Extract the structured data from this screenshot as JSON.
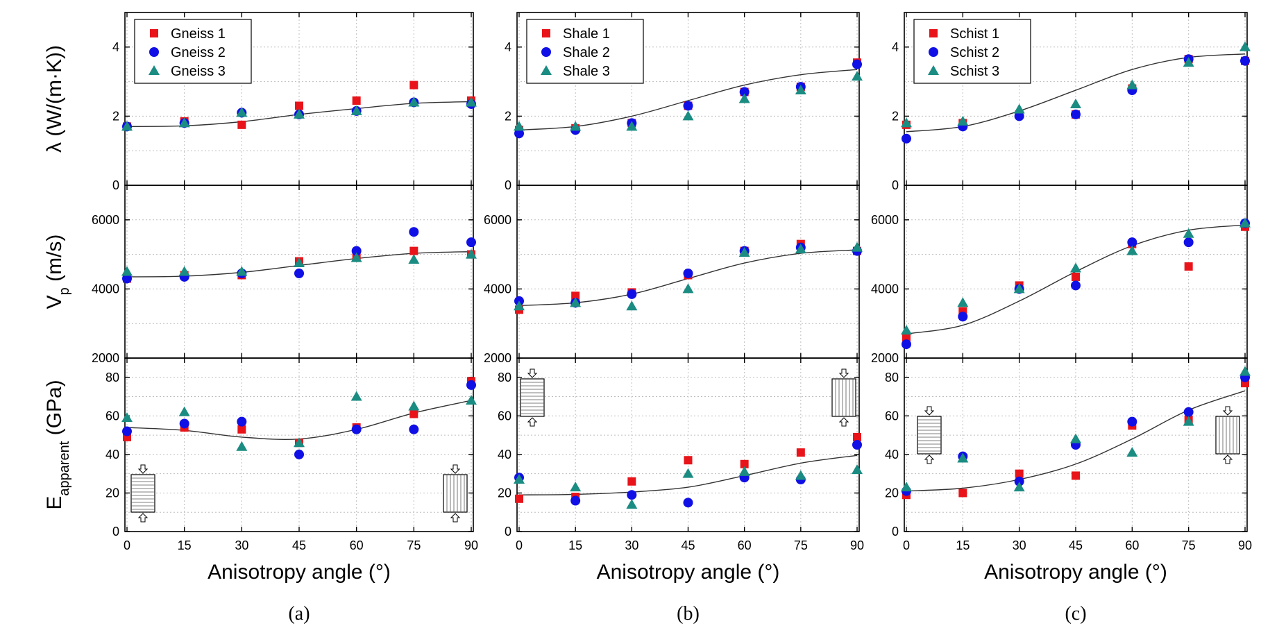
{
  "colors": {
    "s1": "#e8141a",
    "s2": "#1010e6",
    "s3": "#1a8c82",
    "fit": "#333333"
  },
  "chart_data": [
    {
      "type": "scatter",
      "id": "a",
      "caption": "(a)",
      "xlabel": "Anisotropy angle (°)",
      "x": [
        0,
        15,
        30,
        45,
        60,
        75,
        90
      ],
      "xticks": [
        "0",
        "15",
        "30",
        "45",
        "60",
        "75",
        "90"
      ],
      "legend": [
        "Gneiss 1",
        "Gneiss 2",
        "Gneiss 3"
      ],
      "rows": [
        {
          "ylabel": "λ (W/(m·K))",
          "ylim": [
            0,
            5
          ],
          "yticks": [
            0,
            2,
            4
          ],
          "ytick_labels": [
            "0",
            "2",
            "4"
          ],
          "grid": true,
          "series": [
            {
              "name": "Gneiss 1",
              "marker": "square",
              "values": [
                1.7,
                1.85,
                1.75,
                2.3,
                2.45,
                2.9,
                2.45
              ]
            },
            {
              "name": "Gneiss 2",
              "marker": "circle",
              "values": [
                1.7,
                1.8,
                2.1,
                2.05,
                2.15,
                2.4,
                2.35
              ]
            },
            {
              "name": "Gneiss 3",
              "marker": "triangle",
              "values": [
                1.7,
                1.8,
                2.1,
                2.05,
                2.15,
                2.4,
                2.4
              ]
            }
          ],
          "fit": [
            1.7,
            1.72,
            1.84,
            2.05,
            2.22,
            2.37,
            2.42
          ]
        },
        {
          "ylabel": "Vp (m/s)",
          "ylim": [
            2000,
            7000
          ],
          "yticks": [
            2000,
            4000,
            6000
          ],
          "ytick_labels": [
            "2000",
            "4000",
            "6000"
          ],
          "grid": true,
          "series": [
            {
              "name": "Gneiss 1",
              "marker": "square",
              "values": [
                4300,
                4400,
                4400,
                4800,
                4950,
                5100,
                5000
              ]
            },
            {
              "name": "Gneiss 2",
              "marker": "circle",
              "values": [
                4300,
                4350,
                4450,
                4450,
                5100,
                5650,
                5350
              ]
            },
            {
              "name": "Gneiss 3",
              "marker": "triangle",
              "values": [
                4500,
                4500,
                4500,
                4750,
                4900,
                4850,
                5000
              ]
            }
          ],
          "fit": [
            4350,
            4370,
            4480,
            4680,
            4880,
            5030,
            5080
          ]
        },
        {
          "ylabel": "Eapparent (GPa)",
          "ylim": [
            0,
            90
          ],
          "yticks": [
            0,
            20,
            40,
            60,
            80
          ],
          "ytick_labels": [
            "0",
            "20",
            "40",
            "60",
            "80"
          ],
          "grid": true,
          "series": [
            {
              "name": "Gneiss 1",
              "marker": "square",
              "values": [
                49,
                54,
                53,
                46,
                54,
                61,
                78
              ]
            },
            {
              "name": "Gneiss 2",
              "marker": "circle",
              "values": [
                52,
                56,
                57,
                40,
                53,
                53,
                76
              ]
            },
            {
              "name": "Gneiss 3",
              "marker": "triangle",
              "values": [
                59,
                62,
                44,
                46,
                70,
                65,
                68
              ]
            }
          ],
          "fit": [
            54,
            52.5,
            49,
            48,
            53,
            61.5,
            68
          ]
        }
      ],
      "insets": [
        {
          "row": 2,
          "side": "left",
          "lines": "horizontal"
        },
        {
          "row": 2,
          "side": "right",
          "lines": "vertical"
        }
      ]
    },
    {
      "type": "scatter",
      "id": "b",
      "caption": "(b)",
      "xlabel": "Anisotropy angle (°)",
      "x": [
        0,
        15,
        30,
        45,
        60,
        75,
        90
      ],
      "xticks": [
        "0",
        "15",
        "30",
        "45",
        "60",
        "75",
        "90"
      ],
      "legend": [
        "Shale 1",
        "Shale 2",
        "Shale 3"
      ],
      "rows": [
        {
          "ylabel": "",
          "ylim": [
            0,
            5
          ],
          "yticks": [
            0,
            2,
            4
          ],
          "ytick_labels": [
            "0",
            "2",
            "4"
          ],
          "grid": true,
          "series": [
            {
              "name": "Shale 1",
              "marker": "square",
              "values": [
                1.6,
                1.65,
                1.8,
                2.3,
                2.7,
                2.85,
                3.55
              ]
            },
            {
              "name": "Shale 2",
              "marker": "circle",
              "values": [
                1.5,
                1.6,
                1.8,
                2.3,
                2.7,
                2.85,
                3.5
              ]
            },
            {
              "name": "Shale 3",
              "marker": "triangle",
              "values": [
                1.7,
                1.7,
                1.7,
                2.0,
                2.5,
                2.75,
                3.15
              ]
            }
          ],
          "fit": [
            1.6,
            1.7,
            2.0,
            2.45,
            2.9,
            3.2,
            3.35
          ]
        },
        {
          "ylabel": "",
          "ylim": [
            2000,
            7000
          ],
          "yticks": [
            2000,
            4000,
            6000
          ],
          "ytick_labels": [
            "2000",
            "4000",
            "6000"
          ],
          "grid": true,
          "series": [
            {
              "name": "Shale 1",
              "marker": "square",
              "values": [
                3400,
                3800,
                3900,
                4400,
                5100,
                5300,
                5100
              ]
            },
            {
              "name": "Shale 2",
              "marker": "circle",
              "values": [
                3650,
                3600,
                3850,
                4450,
                5100,
                5200,
                5100
              ]
            },
            {
              "name": "Shale 3",
              "marker": "triangle",
              "values": [
                3500,
                3600,
                3500,
                4000,
                5050,
                5150,
                5200
              ]
            }
          ],
          "fit": [
            3520,
            3600,
            3850,
            4300,
            4750,
            5030,
            5130
          ]
        },
        {
          "ylabel": "",
          "ylim": [
            0,
            90
          ],
          "yticks": [
            0,
            20,
            40,
            60,
            80
          ],
          "ytick_labels": [
            "0",
            "20",
            "40",
            "60",
            "80"
          ],
          "grid": true,
          "series": [
            {
              "name": "Shale 1",
              "marker": "square",
              "values": [
                17,
                18,
                26,
                37,
                35,
                41,
                49
              ]
            },
            {
              "name": "Shale 2",
              "marker": "circle",
              "values": [
                28,
                16,
                19,
                15,
                28,
                27,
                45
              ]
            },
            {
              "name": "Shale 3",
              "marker": "triangle",
              "values": [
                27,
                23,
                14,
                30,
                31,
                29,
                32
              ]
            }
          ],
          "fit": [
            19,
            19.3,
            20.5,
            23,
            29,
            35.5,
            39.5
          ]
        }
      ],
      "insets": [
        {
          "row": 2,
          "side": "left",
          "lines": "horizontal"
        },
        {
          "row": 2,
          "side": "right",
          "lines": "vertical"
        }
      ]
    },
    {
      "type": "scatter",
      "id": "c",
      "caption": "(c)",
      "xlabel": "Anisotropy angle (°)",
      "x": [
        0,
        15,
        30,
        45,
        60,
        75,
        90
      ],
      "xticks": [
        "0",
        "15",
        "30",
        "45",
        "60",
        "75",
        "90"
      ],
      "legend": [
        "Schist 1",
        "Schist 2",
        "Schist 3"
      ],
      "rows": [
        {
          "ylabel": "",
          "ylim": [
            0,
            5
          ],
          "yticks": [
            0,
            2,
            4
          ],
          "ytick_labels": [
            "0",
            "2",
            "4"
          ],
          "grid": true,
          "series": [
            {
              "name": "Schist 1",
              "marker": "square",
              "values": [
                1.75,
                1.8,
                2.05,
                2.05,
                2.8,
                3.65,
                3.6
              ]
            },
            {
              "name": "Schist 2",
              "marker": "circle",
              "values": [
                1.35,
                1.7,
                2.0,
                2.05,
                2.75,
                3.65,
                3.6
              ]
            },
            {
              "name": "Schist 3",
              "marker": "triangle",
              "values": [
                1.8,
                1.85,
                2.2,
                2.35,
                2.9,
                3.55,
                4.0
              ]
            }
          ],
          "fit": [
            1.55,
            1.7,
            2.15,
            2.75,
            3.35,
            3.7,
            3.8
          ]
        },
        {
          "ylabel": "",
          "ylim": [
            2000,
            7000
          ],
          "yticks": [
            2000,
            4000,
            6000
          ],
          "ytick_labels": [
            "2000",
            "4000",
            "6000"
          ],
          "grid": true,
          "series": [
            {
              "name": "Schist 1",
              "marker": "square",
              "values": [
                2600,
                3350,
                4100,
                4350,
                5300,
                4650,
                5800
              ]
            },
            {
              "name": "Schist 2",
              "marker": "circle",
              "values": [
                2400,
                3200,
                4000,
                4100,
                5350,
                5350,
                5900
              ]
            },
            {
              "name": "Schist 3",
              "marker": "triangle",
              "values": [
                2800,
                3600,
                4000,
                4600,
                5100,
                5600,
                5900
              ]
            }
          ],
          "fit": [
            2700,
            2950,
            3650,
            4500,
            5250,
            5700,
            5850
          ]
        },
        {
          "ylabel": "",
          "ylim": [
            0,
            90
          ],
          "yticks": [
            0,
            20,
            40,
            60,
            80
          ],
          "ytick_labels": [
            "0",
            "20",
            "40",
            "60",
            "80"
          ],
          "grid": true,
          "series": [
            {
              "name": "Schist 1",
              "marker": "square",
              "values": [
                19,
                20,
                30,
                29,
                55,
                58,
                77
              ]
            },
            {
              "name": "Schist 2",
              "marker": "circle",
              "values": [
                21,
                39,
                26,
                45,
                57,
                62,
                80
              ]
            },
            {
              "name": "Schist 3",
              "marker": "triangle",
              "values": [
                23,
                38,
                23,
                48,
                41,
                57,
                83
              ]
            }
          ],
          "fit": [
            21,
            22.5,
            27,
            35,
            48,
            63,
            73
          ]
        }
      ],
      "insets": [
        {
          "row": 2,
          "side": "left",
          "lines": "horizontal"
        },
        {
          "row": 2,
          "side": "right",
          "lines": "vertical"
        }
      ]
    }
  ]
}
